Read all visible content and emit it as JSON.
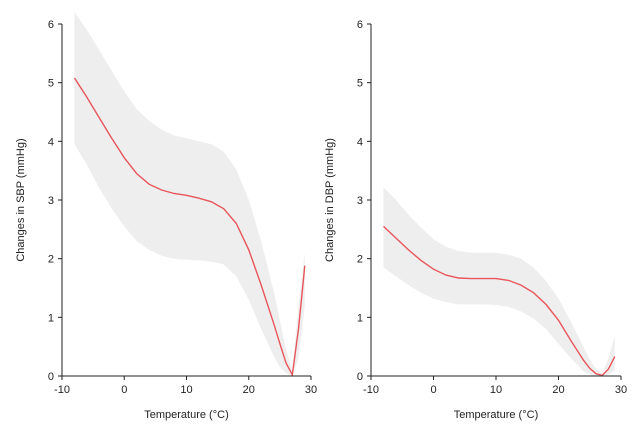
{
  "chart_data": [
    {
      "type": "line",
      "title": "",
      "xlabel": "Temperature (°C)",
      "ylabel": "Changes in SBP (mmHg)",
      "xlim": [
        -10,
        30
      ],
      "ylim": [
        0,
        6
      ],
      "xticks": [
        -10,
        0,
        10,
        20,
        30
      ],
      "yticks": [
        0,
        1,
        2,
        3,
        4,
        5,
        6
      ],
      "grid": false,
      "colors": {
        "line": "#e8555a",
        "band": "#eeeeee",
        "axis": "#222222"
      },
      "series": [
        {
          "x": [
            -8,
            -6,
            -4,
            -2,
            0,
            2,
            4,
            6,
            8,
            10,
            12,
            14,
            16,
            18,
            20,
            22,
            24,
            25,
            26,
            27,
            28,
            29
          ],
          "y": [
            5.08,
            4.75,
            4.4,
            4.05,
            3.72,
            3.45,
            3.27,
            3.17,
            3.11,
            3.08,
            3.03,
            2.97,
            2.85,
            2.6,
            2.15,
            1.55,
            0.9,
            0.55,
            0.22,
            0.02,
            0.8,
            1.88
          ],
          "lower": [
            3.95,
            3.6,
            3.2,
            2.85,
            2.55,
            2.3,
            2.15,
            2.05,
            2.0,
            1.98,
            1.97,
            1.95,
            1.9,
            1.7,
            1.3,
            0.8,
            0.35,
            0.15,
            0.05,
            0.0,
            0.3,
            1.2
          ],
          "upper": [
            6.2,
            5.9,
            5.55,
            5.2,
            4.85,
            4.55,
            4.35,
            4.2,
            4.1,
            4.05,
            4.0,
            3.95,
            3.82,
            3.52,
            3.0,
            2.3,
            1.45,
            0.95,
            0.45,
            0.1,
            1.2,
            2.1
          ]
        }
      ]
    },
    {
      "type": "line",
      "title": "",
      "xlabel": "Temperature (°C)",
      "ylabel": "Changes in DBP (mmHg)",
      "xlim": [
        -10,
        30
      ],
      "ylim": [
        0,
        6
      ],
      "xticks": [
        -10,
        0,
        10,
        20,
        30
      ],
      "yticks": [
        0,
        1,
        2,
        3,
        4,
        5,
        6
      ],
      "grid": false,
      "colors": {
        "line": "#e8555a",
        "band": "#eeeeee",
        "axis": "#222222"
      },
      "series": [
        {
          "x": [
            -8,
            -6,
            -4,
            -2,
            0,
            2,
            4,
            6,
            8,
            10,
            12,
            14,
            16,
            18,
            20,
            22,
            24,
            25,
            26,
            27,
            28,
            29
          ],
          "y": [
            2.55,
            2.35,
            2.15,
            1.97,
            1.82,
            1.72,
            1.67,
            1.66,
            1.66,
            1.66,
            1.63,
            1.55,
            1.42,
            1.22,
            0.95,
            0.6,
            0.27,
            0.13,
            0.04,
            0.01,
            0.12,
            0.33
          ],
          "lower": [
            1.85,
            1.7,
            1.55,
            1.42,
            1.32,
            1.26,
            1.22,
            1.22,
            1.22,
            1.21,
            1.18,
            1.1,
            0.98,
            0.8,
            0.55,
            0.3,
            0.08,
            0.02,
            0.0,
            0.0,
            0.02,
            0.1
          ],
          "upper": [
            3.22,
            3.0,
            2.75,
            2.53,
            2.33,
            2.2,
            2.13,
            2.1,
            2.1,
            2.1,
            2.07,
            2.0,
            1.85,
            1.62,
            1.32,
            0.92,
            0.5,
            0.28,
            0.12,
            0.05,
            0.3,
            0.68
          ]
        }
      ]
    }
  ]
}
